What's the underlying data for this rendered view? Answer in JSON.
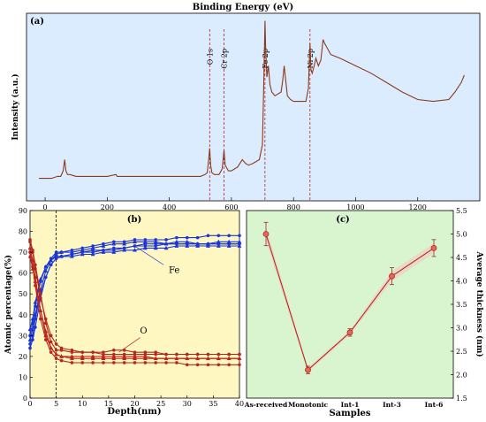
{
  "colors": {
    "bg_a": "#dcecff",
    "bg_b": "#fff7c2",
    "bg_c": "#d8f5d0",
    "spectrum": "#8b3a1a",
    "fe": "#1a36d6",
    "o": "#b8261c",
    "thick": "#b8261c"
  },
  "chart_data": [
    {
      "type": "line",
      "panel_label": "(a)",
      "title": "Binding Energy (eV)",
      "xlabel": "",
      "ylabel": "Intensity (a.u.)",
      "xlim": [
        -60,
        1400
      ],
      "ylim": [
        0,
        1
      ],
      "xticks": [
        0,
        200,
        400,
        600,
        800,
        1000,
        1200
      ],
      "y_tick_labels": false,
      "grid": false,
      "annotations": [
        {
          "text": "O 1s",
          "x": 530
        },
        {
          "text": "Cr 2p",
          "x": 576
        },
        {
          "text": "Fe 2p",
          "x": 708
        },
        {
          "text": "Ni 2p",
          "x": 853
        }
      ],
      "series": [
        {
          "x": [
            -20,
            20,
            40,
            50,
            58,
            63,
            67,
            72,
            80,
            100,
            150,
            200,
            228,
            232,
            250,
            300,
            350,
            400,
            450,
            500,
            515,
            522,
            526,
            530,
            533,
            537,
            545,
            560,
            570,
            576,
            580,
            590,
            600,
            620,
            635,
            645,
            655,
            670,
            690,
            700,
            704,
            708,
            710,
            714,
            719,
            724,
            730,
            740,
            750,
            760,
            765,
            770,
            775,
            780,
            790,
            800,
            820,
            840,
            848,
            853,
            856,
            860,
            865,
            872,
            880,
            888,
            895,
            900,
            920,
            950,
            1000,
            1050,
            1100,
            1150,
            1200,
            1250,
            1300,
            1320,
            1340,
            1350
          ],
          "y": [
            0.12,
            0.12,
            0.13,
            0.13,
            0.16,
            0.22,
            0.16,
            0.14,
            0.14,
            0.13,
            0.13,
            0.13,
            0.14,
            0.13,
            0.13,
            0.13,
            0.13,
            0.13,
            0.13,
            0.13,
            0.14,
            0.15,
            0.21,
            0.28,
            0.19,
            0.15,
            0.14,
            0.14,
            0.17,
            0.27,
            0.19,
            0.16,
            0.16,
            0.18,
            0.22,
            0.2,
            0.19,
            0.2,
            0.22,
            0.3,
            0.6,
            0.96,
            0.82,
            0.66,
            0.72,
            0.62,
            0.58,
            0.56,
            0.57,
            0.58,
            0.64,
            0.72,
            0.64,
            0.56,
            0.54,
            0.53,
            0.53,
            0.53,
            0.6,
            0.84,
            0.7,
            0.68,
            0.71,
            0.76,
            0.72,
            0.75,
            0.86,
            0.84,
            0.78,
            0.76,
            0.72,
            0.68,
            0.63,
            0.58,
            0.54,
            0.53,
            0.54,
            0.58,
            0.63,
            0.67
          ]
        }
      ]
    },
    {
      "type": "line",
      "panel_label": "(b)",
      "xlabel": "Depth(nm)",
      "ylabel": "Atomic percentage(%)",
      "xlim": [
        0,
        40
      ],
      "ylim": [
        0,
        90
      ],
      "xticks": [
        0,
        5,
        10,
        15,
        20,
        25,
        30,
        35,
        40
      ],
      "yticks": [
        0,
        10,
        20,
        30,
        40,
        50,
        60,
        70,
        80,
        90
      ],
      "vline_x": 5,
      "grid": false,
      "annotations": [
        {
          "text": "Fe"
        },
        {
          "text": "O"
        }
      ],
      "x": [
        0,
        0.5,
        1,
        2,
        3,
        4,
        5,
        6,
        8,
        10,
        12,
        14,
        16,
        18,
        20,
        22,
        24,
        26,
        28,
        30,
        32,
        34,
        36,
        38,
        40
      ],
      "series": [
        {
          "element": "Fe",
          "values": [
            24,
            28,
            34,
            48,
            58,
            64,
            67,
            68,
            69,
            70,
            70,
            71,
            71,
            72,
            73,
            74,
            74,
            74,
            74,
            74,
            74,
            74,
            74,
            74,
            74
          ]
        },
        {
          "element": "Fe",
          "values": [
            28,
            33,
            40,
            52,
            61,
            66,
            69,
            70,
            70,
            71,
            72,
            73,
            74,
            74,
            75,
            75,
            75,
            74,
            75,
            75,
            74,
            74,
            75,
            75,
            75
          ]
        },
        {
          "element": "Fe",
          "values": [
            30,
            36,
            44,
            56,
            63,
            67,
            70,
            70,
            71,
            72,
            73,
            74,
            75,
            75,
            76,
            76,
            76,
            76,
            77,
            77,
            77,
            78,
            78,
            78,
            78
          ]
        },
        {
          "element": "Fe",
          "values": [
            33,
            38,
            46,
            57,
            63,
            66,
            68,
            68,
            68,
            69,
            69,
            70,
            70,
            71,
            71,
            72,
            72,
            72,
            73,
            73,
            73,
            73,
            73,
            73,
            73
          ]
        },
        {
          "element": "Fe",
          "values": [
            26,
            30,
            38,
            50,
            58,
            64,
            67,
            68,
            69,
            70,
            71,
            71,
            72,
            72,
            73,
            73,
            73,
            74,
            74,
            74,
            74,
            74,
            74,
            74,
            74
          ]
        },
        {
          "element": "O",
          "values": [
            75,
            70,
            62,
            48,
            38,
            30,
            26,
            24,
            23,
            22,
            22,
            21,
            21,
            21,
            21,
            21,
            21,
            21,
            21,
            21,
            21,
            21,
            21,
            21,
            21
          ]
        },
        {
          "element": "O",
          "values": [
            72,
            66,
            58,
            42,
            32,
            24,
            21,
            20,
            19,
            19,
            19,
            19,
            19,
            19,
            19,
            19,
            19,
            19,
            19,
            19,
            19,
            19,
            19,
            19,
            19
          ]
        },
        {
          "element": "O",
          "values": [
            70,
            63,
            54,
            38,
            28,
            22,
            19,
            18,
            17,
            17,
            17,
            17,
            17,
            17,
            17,
            17,
            17,
            17,
            17,
            16,
            16,
            16,
            16,
            16,
            16
          ]
        },
        {
          "element": "O",
          "values": [
            68,
            62,
            56,
            42,
            30,
            24,
            21,
            20,
            20,
            20,
            20,
            20,
            20,
            20,
            20,
            20,
            19,
            19,
            19,
            19,
            19,
            19,
            19,
            19,
            19
          ]
        },
        {
          "element": "O",
          "values": [
            76,
            71,
            64,
            50,
            36,
            27,
            23,
            23,
            22,
            22,
            22,
            22,
            23,
            23,
            22,
            22,
            22,
            21,
            21,
            21,
            21,
            21,
            21,
            21,
            21
          ]
        }
      ]
    },
    {
      "type": "line",
      "panel_label": "(c)",
      "xlabel": "Samples",
      "ylabel": "Average thickness (nm)",
      "categories": [
        "As-received",
        "Monotonic",
        "Int-1",
        "Int-3",
        "Int-6"
      ],
      "values": [
        5.0,
        2.1,
        2.9,
        4.1,
        4.7
      ],
      "errors": [
        0.25,
        0.08,
        0.08,
        0.18,
        0.18
      ],
      "ylim": [
        1.5,
        5.5
      ],
      "yticks": [
        "1.5",
        "2.0",
        "2.5",
        "3.0",
        "3.5",
        "4.0",
        "4.5",
        "5.0",
        "5.5"
      ],
      "y_axis_side": "right",
      "grid": false
    }
  ]
}
